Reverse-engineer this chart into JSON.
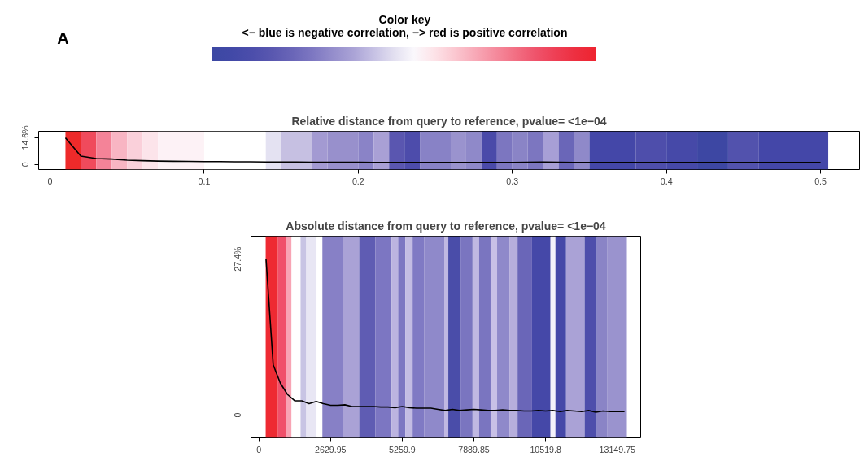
{
  "chart_data": [
    {
      "type": "other",
      "title": "Color key",
      "subtitle": "<− blue is negative correlation, −> red is positive correlation",
      "annotations": [
        "A"
      ],
      "colors": [
        "#3c48a3",
        "#4249a7",
        "#4c4eab",
        "#5a58b0",
        "#6a66b8",
        "#7e78c2",
        "#958ecc",
        "#aaa3d6",
        "#c6c1e4",
        "#e2dff0",
        "#faf8fc",
        "#fde3e8",
        "#fbc8d1",
        "#f8aab8",
        "#f58c9e",
        "#f27084",
        "#ef546c",
        "#ee3f55",
        "#ed2f40",
        "#ee2430"
      ]
    },
    {
      "type": "line",
      "title": "Relative distance from query to reference, pvalue= <1e−04",
      "xlim": [
        -0.0074,
        0.5253
      ],
      "ylim": [
        -2.7,
        18.1
      ],
      "xticks": [
        0,
        0.1,
        0.2,
        0.3,
        0.4,
        0.5
      ],
      "yticks": [
        {
          "value": 0,
          "label": "0"
        },
        {
          "value": 14.6,
          "label": "14.6%"
        }
      ],
      "x": [
        0.01,
        0.02,
        0.03,
        0.04,
        0.05,
        0.06,
        0.07,
        0.08,
        0.09,
        0.1,
        0.11,
        0.12,
        0.13,
        0.14,
        0.15,
        0.16,
        0.17,
        0.18,
        0.19,
        0.2,
        0.21,
        0.22,
        0.23,
        0.24,
        0.25,
        0.26,
        0.27,
        0.28,
        0.29,
        0.3,
        0.31,
        0.32,
        0.33,
        0.34,
        0.35,
        0.36,
        0.37,
        0.38,
        0.39,
        0.4,
        0.41,
        0.42,
        0.43,
        0.44,
        0.45,
        0.46,
        0.47,
        0.48,
        0.49,
        0.5
      ],
      "series": [
        {
          "color": "#000000",
          "values": [
            14.6,
            4.6,
            3.3,
            3.0,
            2.4,
            2.1,
            1.9,
            1.8,
            1.7,
            1.6,
            1.6,
            1.5,
            1.5,
            1.4,
            1.4,
            1.4,
            1.3,
            1.3,
            1.3,
            1.3,
            1.2,
            1.2,
            1.2,
            1.2,
            1.2,
            1.2,
            1.2,
            1.2,
            1.2,
            1.2,
            1.3,
            1.4,
            1.3,
            1.2,
            1.2,
            1.1,
            1.1,
            1.1,
            1.1,
            1.1,
            1.1,
            1.1,
            1.1,
            1.1,
            1.1,
            1.1,
            1.1,
            1.1,
            1.1,
            1.1
          ]
        }
      ],
      "bands": [
        {
          "axis": "x",
          "from": 0.01,
          "to": 0.02,
          "color": "#ee2a2a"
        },
        {
          "axis": "x",
          "from": 0.02,
          "to": 0.03,
          "color": "#f04a5c"
        },
        {
          "axis": "x",
          "from": 0.03,
          "to": 0.04,
          "color": "#f48398"
        },
        {
          "axis": "x",
          "from": 0.04,
          "to": 0.05,
          "color": "#f8b5c3"
        },
        {
          "axis": "x",
          "from": 0.05,
          "to": 0.06,
          "color": "#fad0da"
        },
        {
          "axis": "x",
          "from": 0.06,
          "to": 0.07,
          "color": "#fce4ea"
        },
        {
          "axis": "x",
          "from": 0.07,
          "to": 0.1,
          "color": "#fdf2f6"
        },
        {
          "axis": "x",
          "from": 0.1,
          "to": 0.14,
          "color": "#ffffff"
        },
        {
          "axis": "x",
          "from": 0.14,
          "to": 0.15,
          "color": "#e4e2f2"
        },
        {
          "axis": "x",
          "from": 0.15,
          "to": 0.17,
          "color": "#c6c0e2"
        },
        {
          "axis": "x",
          "from": 0.17,
          "to": 0.18,
          "color": "#a39ad2"
        },
        {
          "axis": "x",
          "from": 0.18,
          "to": 0.2,
          "color": "#9890cc"
        },
        {
          "axis": "x",
          "from": 0.2,
          "to": 0.21,
          "color": "#8a83c7"
        },
        {
          "axis": "x",
          "from": 0.21,
          "to": 0.22,
          "color": "#a9a0d5"
        },
        {
          "axis": "x",
          "from": 0.22,
          "to": 0.23,
          "color": "#5a56b0"
        },
        {
          "axis": "x",
          "from": 0.23,
          "to": 0.24,
          "color": "#4d4cab"
        },
        {
          "axis": "x",
          "from": 0.24,
          "to": 0.26,
          "color": "#8882c6"
        },
        {
          "axis": "x",
          "from": 0.26,
          "to": 0.27,
          "color": "#9a93ce"
        },
        {
          "axis": "x",
          "from": 0.27,
          "to": 0.28,
          "color": "#8f89c9"
        },
        {
          "axis": "x",
          "from": 0.28,
          "to": 0.29,
          "color": "#4a4aa9"
        },
        {
          "axis": "x",
          "from": 0.29,
          "to": 0.3,
          "color": "#7c76c0"
        },
        {
          "axis": "x",
          "from": 0.3,
          "to": 0.31,
          "color": "#8a84c6"
        },
        {
          "axis": "x",
          "from": 0.31,
          "to": 0.32,
          "color": "#7c76c0"
        },
        {
          "axis": "x",
          "from": 0.32,
          "to": 0.33,
          "color": "#a79fd6"
        },
        {
          "axis": "x",
          "from": 0.33,
          "to": 0.34,
          "color": "#6a66b8"
        },
        {
          "axis": "x",
          "from": 0.34,
          "to": 0.35,
          "color": "#8f89c9"
        },
        {
          "axis": "x",
          "from": 0.35,
          "to": 0.38,
          "color": "#4447a8"
        },
        {
          "axis": "x",
          "from": 0.38,
          "to": 0.4,
          "color": "#4e4eab"
        },
        {
          "axis": "x",
          "from": 0.4,
          "to": 0.42,
          "color": "#4649a8"
        },
        {
          "axis": "x",
          "from": 0.42,
          "to": 0.44,
          "color": "#3d47a3"
        },
        {
          "axis": "x",
          "from": 0.44,
          "to": 0.46,
          "color": "#5252ad"
        },
        {
          "axis": "x",
          "from": 0.46,
          "to": 0.505,
          "color": "#4447a8"
        }
      ]
    },
    {
      "type": "line",
      "title": "Absolute distance from query to reference, pvalue= <1e−04",
      "xlim": [
        -289,
        14007
      ],
      "ylim": [
        -4.0,
        31.4
      ],
      "xticks": [
        0,
        2629.95,
        5259.9,
        7889.85,
        10519.8,
        13149.75
      ],
      "yticks": [
        {
          "value": 0,
          "label": "0"
        },
        {
          "value": 27.4,
          "label": "27.4%"
        }
      ],
      "x": [
        263,
        526,
        789,
        1052,
        1315,
        1578,
        1841,
        2104,
        2367,
        2630,
        2893,
        3156,
        3419,
        3682,
        3945,
        4208,
        4471,
        4734,
        4997,
        5260,
        5523,
        5786,
        6049,
        6312,
        6575,
        6838,
        7101,
        7364,
        7627,
        7890,
        8153,
        8416,
        8679,
        8942,
        9205,
        9468,
        9731,
        9994,
        10257,
        10520,
        10783,
        11046,
        11309,
        11572,
        11835,
        12098,
        12361,
        12624,
        12887,
        13150,
        13413
      ],
      "series": [
        {
          "color": "#000000",
          "values": [
            27.4,
            8.8,
            5.6,
            3.6,
            2.5,
            2.5,
            2.0,
            2.4,
            2.0,
            1.7,
            1.7,
            1.8,
            1.5,
            1.5,
            1.5,
            1.5,
            1.4,
            1.4,
            1.3,
            1.5,
            1.3,
            1.2,
            1.2,
            1.2,
            1.0,
            0.8,
            1.0,
            0.8,
            0.9,
            1.0,
            0.9,
            0.8,
            0.8,
            0.9,
            0.8,
            0.8,
            0.7,
            0.7,
            0.8,
            0.7,
            0.8,
            0.6,
            0.8,
            0.7,
            0.6,
            0.8,
            0.5,
            0.7,
            0.6,
            0.6,
            0.6
          ]
        }
      ],
      "bands": [
        {
          "axis": "x",
          "from": 250,
          "to": 700,
          "color": "#ee2a32"
        },
        {
          "axis": "x",
          "from": 700,
          "to": 1000,
          "color": "#f0506a"
        },
        {
          "axis": "x",
          "from": 1000,
          "to": 1200,
          "color": "#f8a4b4"
        },
        {
          "axis": "x",
          "from": 1200,
          "to": 1530,
          "color": "#ffffff"
        },
        {
          "axis": "x",
          "from": 1530,
          "to": 1740,
          "color": "#c8c4e4"
        },
        {
          "axis": "x",
          "from": 1740,
          "to": 2120,
          "color": "#e8e6f4"
        },
        {
          "axis": "x",
          "from": 2120,
          "to": 2330,
          "color": "#ffffff"
        },
        {
          "axis": "x",
          "from": 2330,
          "to": 3080,
          "color": "#8780c6"
        },
        {
          "axis": "x",
          "from": 3080,
          "to": 3680,
          "color": "#aaa2d6"
        },
        {
          "axis": "x",
          "from": 3680,
          "to": 4270,
          "color": "#5f5cb3"
        },
        {
          "axis": "x",
          "from": 4270,
          "to": 4870,
          "color": "#7c76c2"
        },
        {
          "axis": "x",
          "from": 4870,
          "to": 5110,
          "color": "#bcb4e0"
        },
        {
          "axis": "x",
          "from": 5110,
          "to": 5370,
          "color": "#7c76c2"
        },
        {
          "axis": "x",
          "from": 5370,
          "to": 5640,
          "color": "#c3bce3"
        },
        {
          "axis": "x",
          "from": 5640,
          "to": 6060,
          "color": "#807ac4"
        },
        {
          "axis": "x",
          "from": 6060,
          "to": 6800,
          "color": "#8f89ca"
        },
        {
          "axis": "x",
          "from": 6800,
          "to": 6950,
          "color": "#c0b8e2"
        },
        {
          "axis": "x",
          "from": 6950,
          "to": 7400,
          "color": "#4a4da9"
        },
        {
          "axis": "x",
          "from": 7400,
          "to": 7840,
          "color": "#7a75c0"
        },
        {
          "axis": "x",
          "from": 7840,
          "to": 8080,
          "color": "#c0b8e2"
        },
        {
          "axis": "x",
          "from": 8080,
          "to": 8500,
          "color": "#7a75c0"
        },
        {
          "axis": "x",
          "from": 8500,
          "to": 8740,
          "color": "#c8c0e6"
        },
        {
          "axis": "x",
          "from": 8740,
          "to": 9190,
          "color": "#8f89ca"
        },
        {
          "axis": "x",
          "from": 9190,
          "to": 9490,
          "color": "#b6aedc"
        },
        {
          "axis": "x",
          "from": 9490,
          "to": 10020,
          "color": "#6a66b8"
        },
        {
          "axis": "x",
          "from": 10020,
          "to": 10700,
          "color": "#4548a8"
        },
        {
          "axis": "x",
          "from": 10700,
          "to": 10880,
          "color": "#f4f2fa"
        },
        {
          "axis": "x",
          "from": 10880,
          "to": 11270,
          "color": "#4548a8"
        },
        {
          "axis": "x",
          "from": 11270,
          "to": 11950,
          "color": "#aaa2d6"
        },
        {
          "axis": "x",
          "from": 11950,
          "to": 12400,
          "color": "#4e4eab"
        },
        {
          "axis": "x",
          "from": 12400,
          "to": 12790,
          "color": "#8a84c6"
        },
        {
          "axis": "x",
          "from": 12790,
          "to": 13500,
          "color": "#9a93ce"
        }
      ]
    }
  ]
}
